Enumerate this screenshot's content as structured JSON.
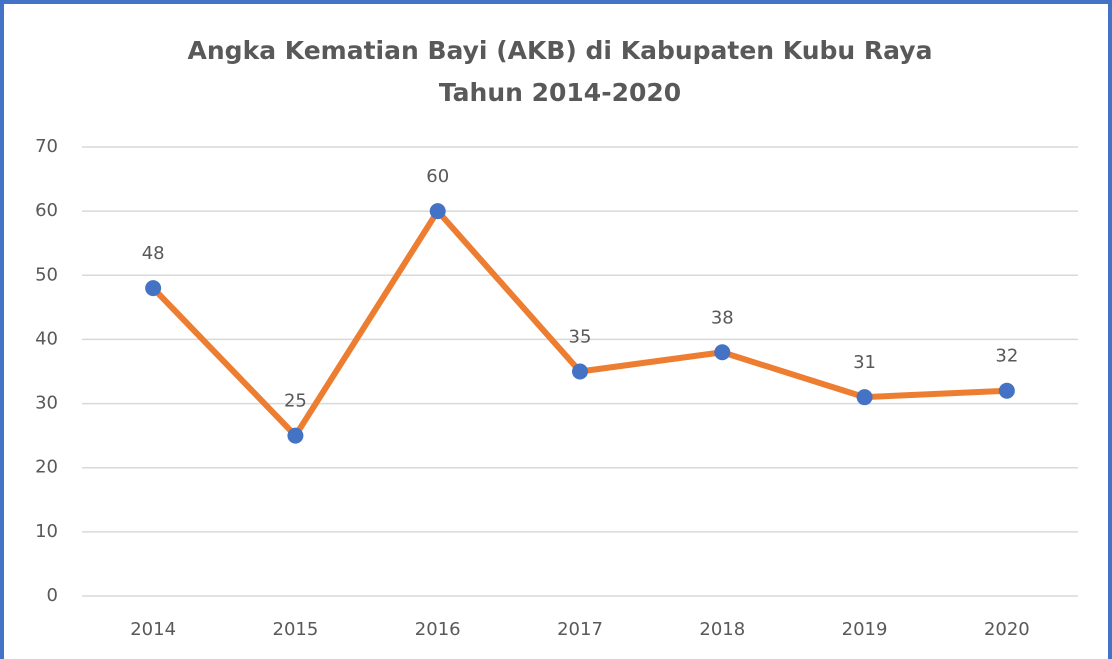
{
  "chart_data": {
    "type": "line",
    "title": [
      "Angka Kematian Bayi (AKB) di Kabupaten Kubu Raya",
      "Tahun 2014-2020"
    ],
    "categories": [
      "2014",
      "2015",
      "2016",
      "2017",
      "2018",
      "2019",
      "2020"
    ],
    "values": [
      48,
      25,
      60,
      35,
      38,
      31,
      32
    ],
    "color": "#ed7d31",
    "marker_color": "#4472c4",
    "ylim": [
      0,
      70
    ],
    "yticks": [
      0,
      10,
      20,
      30,
      40,
      50,
      60,
      70
    ],
    "grid": true
  }
}
